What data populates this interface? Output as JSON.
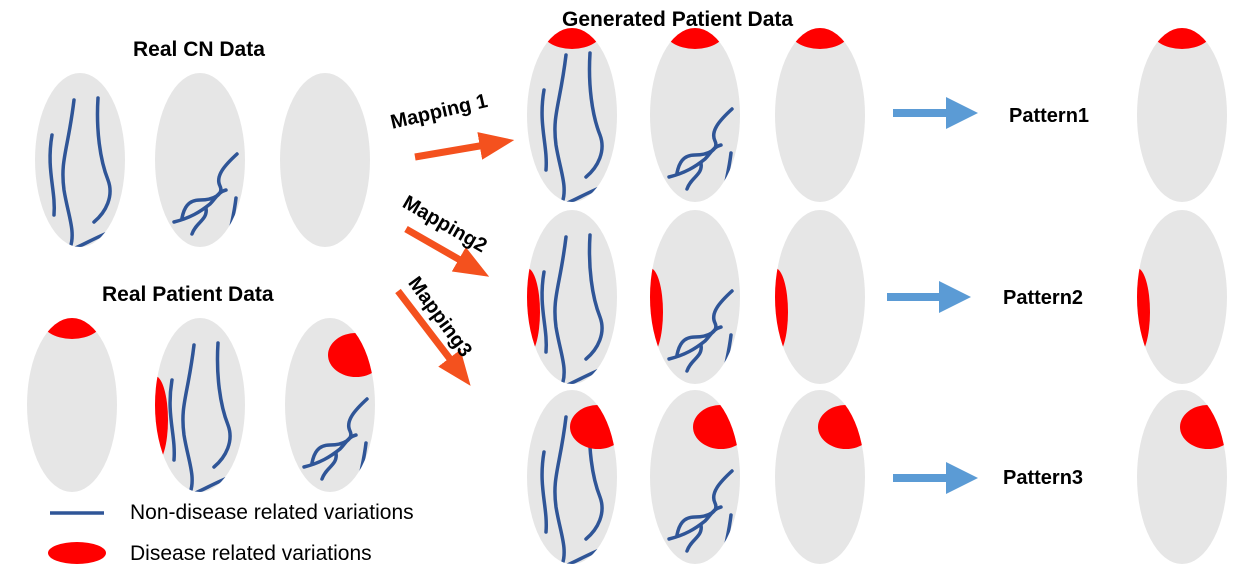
{
  "titles": {
    "real_cn": "Real CN Data",
    "real_patient": "Real Patient Data",
    "generated": "Generated Patient Data"
  },
  "mappings": [
    "Mapping 1",
    "Mapping2",
    "Mapping3"
  ],
  "patterns": [
    "Pattern1",
    "Pattern2",
    "Pattern3"
  ],
  "legend": {
    "non_disease": "Non-disease related variations",
    "disease": "Disease related variations"
  },
  "colors": {
    "ellipse": "#e6e6e6",
    "vessel": "#2f5597",
    "disease": "#ff0000",
    "mapping_arrow": "#f4511e",
    "pattern_arrow": "#5b9bd5"
  }
}
